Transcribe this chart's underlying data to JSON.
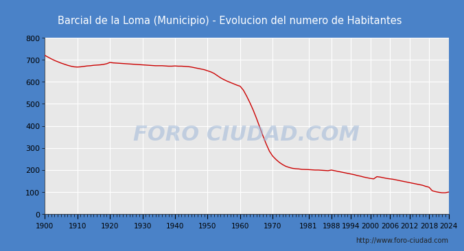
{
  "title": "Barcial de la Loma (Municipio) - Evolucion del numero de Habitantes",
  "title_bg_color": "#4a82c8",
  "title_text_color": "#ffffff",
  "line_color": "#cc0000",
  "bg_color": "#4a82c8",
  "plot_bg_color": "#e8e8e8",
  "grid_color": "#ffffff",
  "url_text": "http://www.foro-ciudad.com",
  "watermark": "FORO CIUDAD.COM",
  "ylim": [
    0,
    800
  ],
  "yticks": [
    0,
    100,
    200,
    300,
    400,
    500,
    600,
    700,
    800
  ],
  "xtick_labels": [
    "1900",
    "1910",
    "1920",
    "1930",
    "1940",
    "1950",
    "1960",
    "1970",
    "1981",
    "1988",
    "1994",
    "2000",
    "2006",
    "2012",
    "2018",
    "2024"
  ],
  "xtick_positions": [
    1900,
    1910,
    1920,
    1930,
    1940,
    1950,
    1960,
    1970,
    1981,
    1988,
    1994,
    2000,
    2006,
    2012,
    2018,
    2024
  ],
  "years": [
    1900,
    1901,
    1902,
    1903,
    1904,
    1905,
    1906,
    1907,
    1908,
    1909,
    1910,
    1911,
    1912,
    1913,
    1914,
    1915,
    1916,
    1917,
    1918,
    1919,
    1920,
    1921,
    1922,
    1923,
    1924,
    1925,
    1926,
    1927,
    1928,
    1929,
    1930,
    1931,
    1932,
    1933,
    1934,
    1935,
    1936,
    1937,
    1938,
    1939,
    1940,
    1941,
    1942,
    1943,
    1944,
    1945,
    1946,
    1947,
    1948,
    1949,
    1950,
    1951,
    1952,
    1953,
    1954,
    1955,
    1956,
    1957,
    1958,
    1959,
    1960,
    1961,
    1962,
    1963,
    1964,
    1965,
    1966,
    1967,
    1968,
    1969,
    1970,
    1971,
    1972,
    1973,
    1974,
    1975,
    1976,
    1977,
    1978,
    1979,
    1981,
    1982,
    1983,
    1984,
    1985,
    1986,
    1987,
    1988,
    1989,
    1990,
    1991,
    1992,
    1993,
    1994,
    1995,
    1996,
    1997,
    1998,
    1999,
    2000,
    2001,
    2002,
    2003,
    2004,
    2005,
    2006,
    2007,
    2008,
    2009,
    2010,
    2011,
    2012,
    2013,
    2014,
    2015,
    2016,
    2017,
    2018,
    2019,
    2020,
    2021,
    2022,
    2023,
    2024
  ],
  "population": [
    720,
    712,
    704,
    697,
    691,
    685,
    680,
    675,
    671,
    668,
    667,
    668,
    670,
    672,
    673,
    675,
    676,
    677,
    679,
    682,
    688,
    686,
    685,
    684,
    683,
    682,
    681,
    680,
    679,
    678,
    677,
    676,
    675,
    674,
    673,
    673,
    673,
    672,
    671,
    671,
    672,
    671,
    671,
    670,
    669,
    667,
    664,
    661,
    658,
    655,
    650,
    645,
    638,
    628,
    618,
    610,
    603,
    597,
    591,
    585,
    580,
    562,
    535,
    505,
    472,
    435,
    395,
    355,
    318,
    285,
    263,
    248,
    235,
    225,
    217,
    212,
    208,
    206,
    205,
    203,
    202,
    201,
    200,
    200,
    199,
    198,
    197,
    200,
    197,
    194,
    191,
    188,
    185,
    182,
    179,
    175,
    172,
    168,
    165,
    162,
    160,
    170,
    168,
    165,
    162,
    160,
    158,
    155,
    152,
    149,
    146,
    143,
    140,
    137,
    134,
    131,
    126,
    122,
    106,
    102,
    99,
    97,
    97,
    100
  ]
}
